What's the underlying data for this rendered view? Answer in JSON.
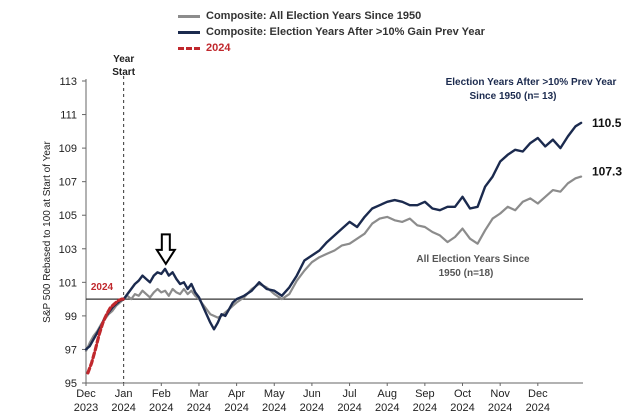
{
  "chart_data": {
    "type": "line",
    "ylabel": "S&P 500 Rebased to 100 at Start of Year",
    "ylim": [
      95,
      113
    ],
    "yticks": [
      "95",
      "97",
      "99",
      "101",
      "103",
      "105",
      "107",
      "109",
      "111",
      "113"
    ],
    "ytick_values": [
      95,
      97,
      99,
      101,
      103,
      105,
      107,
      109,
      111,
      113
    ],
    "categories": [
      {
        "month": "Dec",
        "year": "2023"
      },
      {
        "month": "Jan",
        "year": "2024"
      },
      {
        "month": "Feb",
        "year": "2024"
      },
      {
        "month": "Mar",
        "year": "2024"
      },
      {
        "month": "Apr",
        "year": "2024"
      },
      {
        "month": "May",
        "year": "2024"
      },
      {
        "month": "Jun",
        "year": "2024"
      },
      {
        "month": "Jul",
        "year": "2024"
      },
      {
        "month": "Aug",
        "year": "2024"
      },
      {
        "month": "Sep",
        "year": "2024"
      },
      {
        "month": "Oct",
        "year": "2024"
      },
      {
        "month": "Nov",
        "year": "2024"
      },
      {
        "month": "Dec",
        "year": "2024"
      }
    ],
    "xrange": [
      0,
      13.2
    ],
    "baseline": 100,
    "year_start_x": 1,
    "year_start_label": [
      "Year",
      "Start"
    ],
    "legend": {
      "gray": "Composite: All Election Years Since 1950",
      "navy": "Composite: Election Years After >10% Gain Prev Year",
      "red": "2024"
    },
    "colors": {
      "gray": "#8c8c8c",
      "navy": "#1b2a4e",
      "red": "#c0282d",
      "baseline": "#333333"
    },
    "series": [
      {
        "name": "Composite: All Election Years Since 1950",
        "key": "gray",
        "x": [
          0.0,
          0.1,
          0.2,
          0.3,
          0.4,
          0.5,
          0.6,
          0.7,
          0.8,
          0.9,
          1.0,
          1.1,
          1.2,
          1.3,
          1.4,
          1.5,
          1.6,
          1.7,
          1.8,
          1.9,
          2.0,
          2.1,
          2.2,
          2.3,
          2.4,
          2.5,
          2.6,
          2.7,
          2.8,
          2.9,
          3.0,
          3.1,
          3.2,
          3.3,
          3.4,
          3.5,
          3.6,
          3.7,
          3.8,
          3.9,
          4.0,
          4.2,
          4.4,
          4.6,
          4.8,
          5.0,
          5.2,
          5.4,
          5.6,
          5.8,
          6.0,
          6.2,
          6.4,
          6.6,
          6.8,
          7.0,
          7.2,
          7.4,
          7.6,
          7.8,
          8.0,
          8.2,
          8.4,
          8.6,
          8.8,
          9.0,
          9.2,
          9.4,
          9.6,
          9.8,
          10.0,
          10.2,
          10.4,
          10.6,
          10.8,
          11.0,
          11.2,
          11.4,
          11.6,
          11.8,
          12.0,
          12.2,
          12.4,
          12.6,
          12.8,
          13.0,
          13.15
        ],
        "y": [
          96.9,
          97.4,
          97.8,
          98.1,
          98.5,
          98.8,
          99.1,
          99.3,
          99.6,
          99.8,
          100.0,
          100.2,
          100.0,
          100.3,
          100.2,
          100.5,
          100.3,
          100.1,
          100.4,
          100.6,
          100.4,
          100.5,
          100.2,
          100.6,
          100.4,
          100.3,
          100.6,
          100.3,
          100.5,
          100.2,
          100.0,
          99.7,
          99.4,
          99.1,
          99.0,
          98.9,
          99.0,
          99.2,
          99.4,
          99.6,
          99.8,
          100.1,
          100.6,
          100.9,
          100.7,
          100.3,
          100.0,
          100.3,
          101.1,
          101.7,
          102.2,
          102.5,
          102.7,
          102.9,
          103.2,
          103.3,
          103.6,
          103.9,
          104.5,
          104.8,
          104.9,
          104.7,
          104.6,
          104.8,
          104.4,
          104.3,
          104.0,
          103.8,
          103.4,
          103.7,
          104.2,
          103.6,
          103.3,
          104.1,
          104.8,
          105.1,
          105.5,
          105.3,
          105.8,
          106.0,
          105.7,
          106.1,
          106.5,
          106.4,
          106.9,
          107.2,
          107.3
        ]
      },
      {
        "name": "Composite: Election Years After >10% Gain Prev Year",
        "key": "navy",
        "x": [
          0.0,
          0.1,
          0.2,
          0.3,
          0.4,
          0.5,
          0.6,
          0.7,
          0.8,
          0.9,
          1.0,
          1.1,
          1.2,
          1.3,
          1.4,
          1.5,
          1.6,
          1.7,
          1.8,
          1.9,
          2.0,
          2.1,
          2.2,
          2.3,
          2.4,
          2.5,
          2.6,
          2.7,
          2.8,
          2.9,
          3.0,
          3.1,
          3.2,
          3.3,
          3.4,
          3.5,
          3.6,
          3.7,
          3.8,
          3.9,
          4.0,
          4.2,
          4.4,
          4.6,
          4.8,
          5.0,
          5.2,
          5.4,
          5.6,
          5.8,
          6.0,
          6.2,
          6.4,
          6.6,
          6.8,
          7.0,
          7.2,
          7.4,
          7.6,
          7.8,
          8.0,
          8.2,
          8.4,
          8.6,
          8.8,
          9.0,
          9.2,
          9.4,
          9.6,
          9.8,
          10.0,
          10.2,
          10.4,
          10.6,
          10.8,
          11.0,
          11.2,
          11.4,
          11.6,
          11.8,
          12.0,
          12.2,
          12.4,
          12.6,
          12.8,
          13.0,
          13.15
        ],
        "y": [
          97.0,
          97.2,
          97.6,
          98.0,
          98.4,
          98.9,
          99.2,
          99.5,
          99.7,
          99.9,
          100.0,
          100.3,
          100.6,
          100.9,
          101.1,
          101.4,
          101.2,
          101.0,
          101.4,
          101.6,
          101.5,
          101.8,
          101.4,
          101.6,
          101.2,
          100.9,
          101.0,
          100.6,
          100.9,
          100.4,
          100.1,
          99.6,
          99.1,
          98.6,
          98.2,
          98.6,
          99.1,
          99.0,
          99.4,
          99.8,
          100.0,
          100.2,
          100.5,
          101.0,
          100.6,
          100.5,
          100.2,
          100.7,
          101.4,
          102.3,
          102.6,
          102.9,
          103.4,
          103.8,
          104.2,
          104.6,
          104.3,
          104.9,
          105.4,
          105.6,
          105.8,
          105.9,
          105.8,
          105.6,
          105.6,
          105.8,
          105.4,
          105.3,
          105.5,
          105.5,
          106.1,
          105.4,
          105.5,
          106.7,
          107.3,
          108.2,
          108.6,
          108.9,
          108.8,
          109.3,
          109.6,
          109.1,
          109.5,
          109.0,
          109.7,
          110.3,
          110.5
        ]
      },
      {
        "name": "2024",
        "key": "red",
        "x": [
          0.05,
          0.15,
          0.25,
          0.35,
          0.45,
          0.55,
          0.65,
          0.75,
          0.85,
          0.95,
          1.0
        ],
        "y": [
          95.6,
          96.2,
          97.0,
          97.9,
          98.6,
          99.1,
          99.5,
          99.7,
          99.9,
          100.0,
          100.0
        ]
      }
    ],
    "end_labels": {
      "gray": "107.3",
      "navy": "110.5"
    },
    "annotations": {
      "navy_title": [
        "Election Years After >10% Prev Year",
        "Since 1950 (n= 13)"
      ],
      "gray_title": [
        "All Election Years Since",
        "1950 (n=18)"
      ],
      "red_label": "2024"
    },
    "arrow": {
      "x": 2.12,
      "y_tip": 102.1,
      "y_tail": 103.5
    }
  }
}
